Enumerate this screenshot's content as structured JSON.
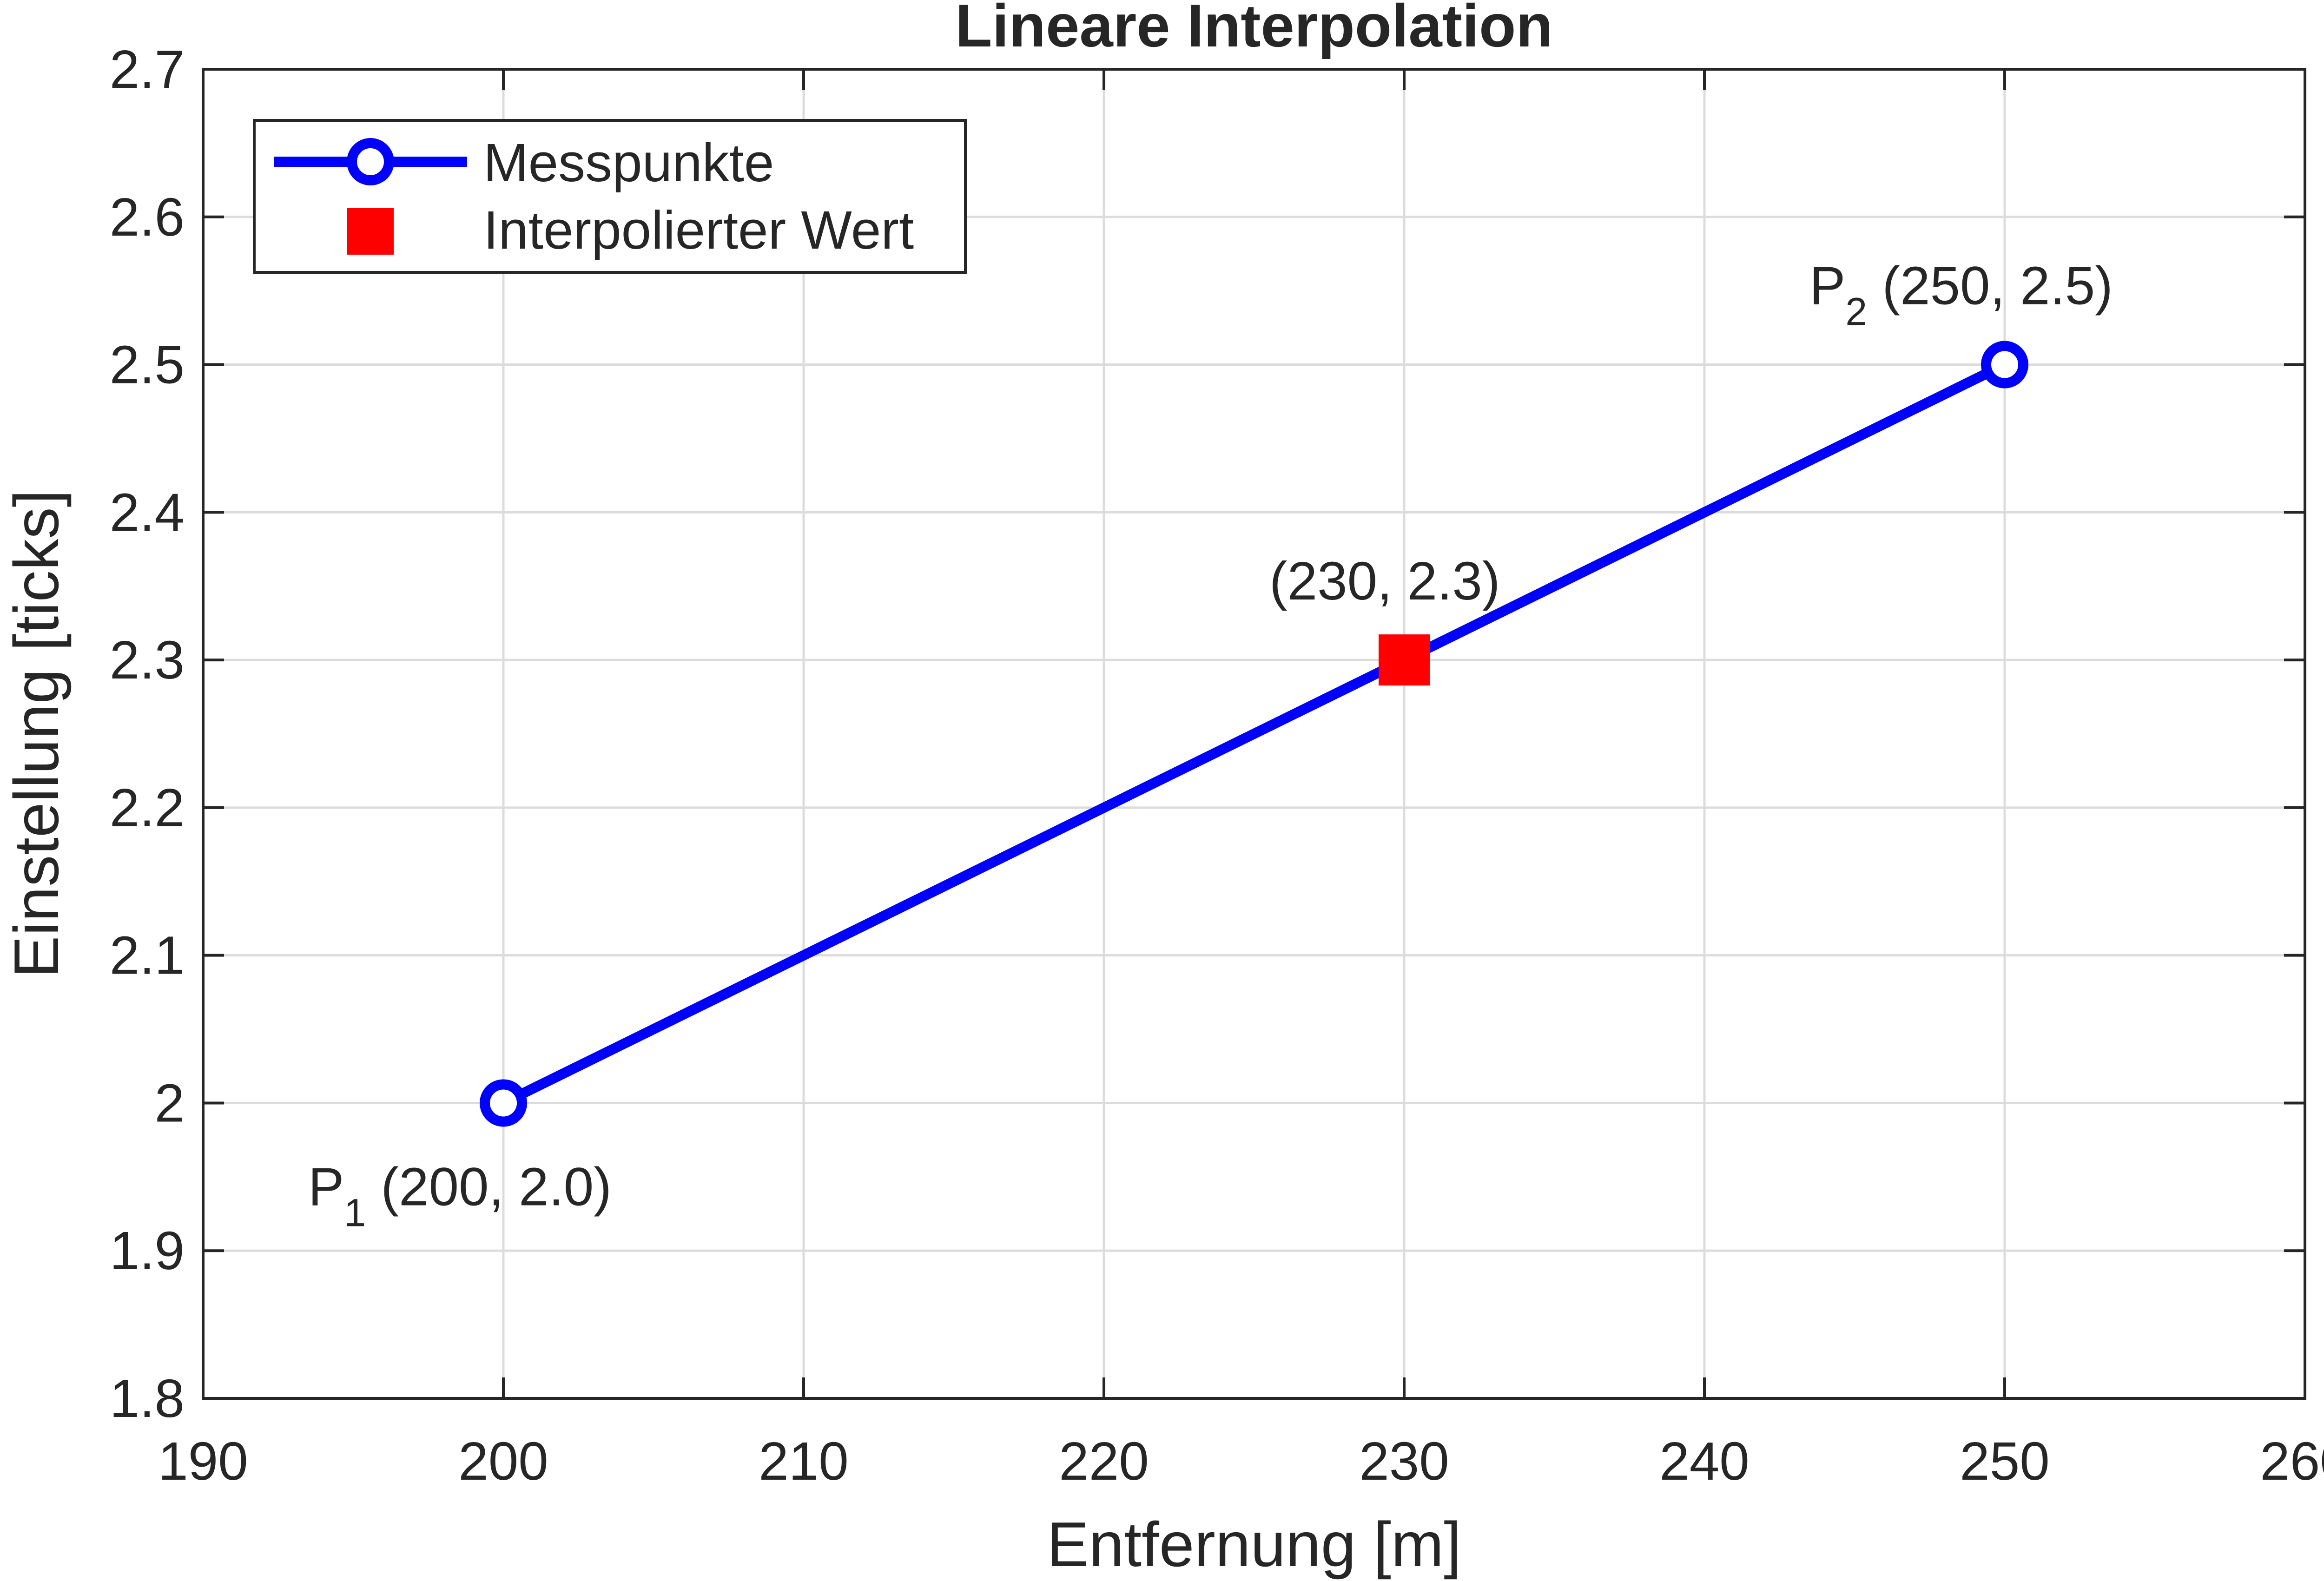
{
  "chart_data": {
    "type": "line",
    "title": "Lineare Interpolation",
    "xlabel": "Entfernung [m]",
    "ylabel": "Einstellung [ticks]",
    "xlim": [
      190,
      260
    ],
    "ylim": [
      1.8,
      2.7
    ],
    "xticks": [
      "190",
      "200",
      "210",
      "220",
      "230",
      "240",
      "250",
      "260"
    ],
    "yticks": [
      "1.8",
      "1.9",
      "2",
      "2.1",
      "2.2",
      "2.3",
      "2.4",
      "2.5",
      "2.6",
      "2.7"
    ],
    "grid": true,
    "legend_position": "top-left",
    "series": [
      {
        "name": "Messpunkte",
        "color": "#0000ff",
        "marker": "circle",
        "x": [
          200,
          250
        ],
        "y": [
          2.0,
          2.5
        ]
      },
      {
        "name": "Interpolierter Wert",
        "color": "#ff0000",
        "marker": "square",
        "x": [
          230
        ],
        "y": [
          2.3
        ]
      }
    ],
    "annotations": [
      {
        "label": "P",
        "sub": "1",
        "text": "(200,  2.0)",
        "x": 200,
        "y": 2.0
      },
      {
        "label": "",
        "sub": "",
        "text": "(230, 2.3)",
        "x": 230,
        "y": 2.3
      },
      {
        "label": "P",
        "sub": "2",
        "text": "(250,  2.5)",
        "x": 250,
        "y": 2.5
      }
    ]
  }
}
